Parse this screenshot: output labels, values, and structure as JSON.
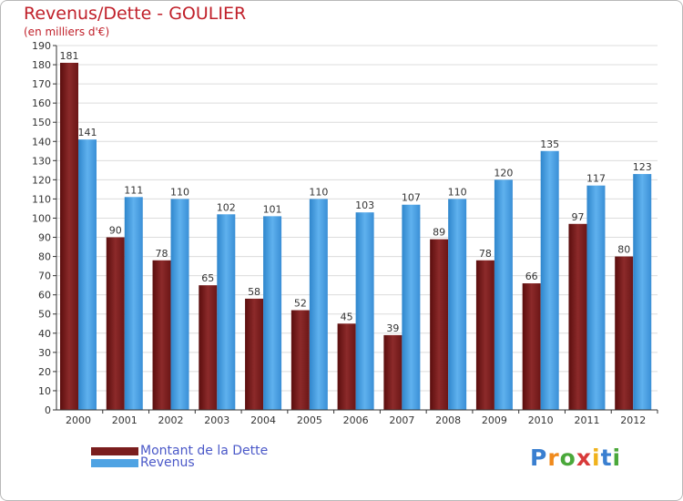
{
  "chart_data": {
    "type": "bar",
    "title": "Revenus/Dette - GOULIER",
    "subtitle": "(en milliers d'€)",
    "categories": [
      "2000",
      "2001",
      "2002",
      "2003",
      "2004",
      "2005",
      "2006",
      "2007",
      "2008",
      "2009",
      "2010",
      "2011",
      "2012"
    ],
    "series": [
      {
        "name": "Montant de la Dette",
        "color": "#7a1e1e",
        "values": [
          181,
          90,
          78,
          65,
          58,
          52,
          45,
          39,
          89,
          78,
          66,
          97,
          80
        ]
      },
      {
        "name": "Revenus",
        "color": "#4fa3e3",
        "values": [
          141,
          111,
          110,
          102,
          101,
          110,
          103,
          107,
          110,
          120,
          135,
          117,
          123
        ]
      }
    ],
    "ylim": [
      0,
      190
    ],
    "ytick_step": 10,
    "grid": true,
    "legend": "bottom-left"
  },
  "logo": {
    "text": "Proxiti"
  }
}
